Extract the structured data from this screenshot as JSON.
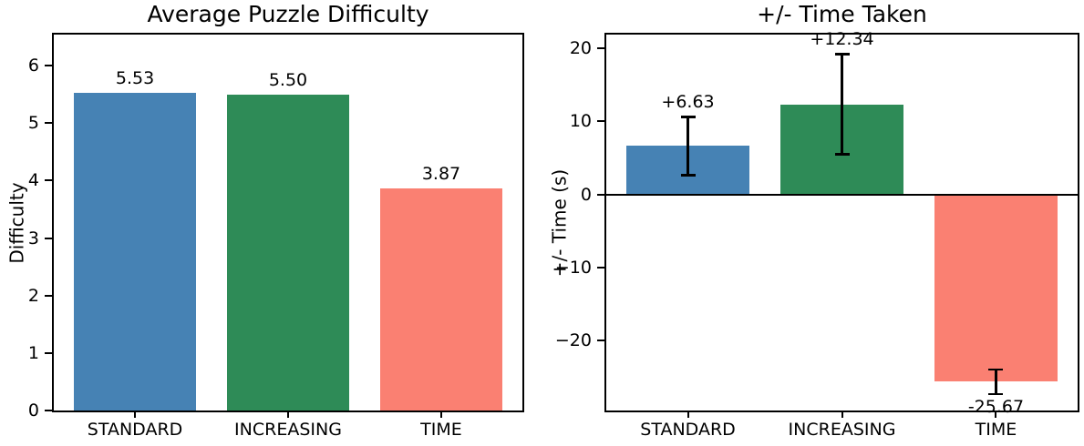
{
  "figure": {
    "background": "#ffffff"
  },
  "chart_data": [
    {
      "type": "bar",
      "title": "Average Puzzle Difficulty",
      "xlabel": "",
      "ylabel": "Difficulty",
      "categories": [
        "STANDARD",
        "INCREASING",
        "TIME"
      ],
      "values": [
        5.53,
        5.5,
        3.87
      ],
      "bar_labels": [
        "5.53",
        "5.50",
        "3.87"
      ],
      "colors": [
        "#4682B4",
        "#2E8B57",
        "#FA8072"
      ],
      "yticks": [
        0,
        1,
        2,
        3,
        4,
        5,
        6
      ],
      "ytick_labels": [
        "0",
        "1",
        "2",
        "3",
        "4",
        "5",
        "6"
      ],
      "ylim": [
        0,
        6.54
      ],
      "xlim": [
        -0.53,
        2.53
      ],
      "grid": false,
      "legend": null,
      "zero_line": false
    },
    {
      "type": "bar",
      "title": "+/- Time Taken",
      "xlabel": "",
      "ylabel": "+/- Time (s)",
      "categories": [
        "STANDARD",
        "INCREASING",
        "TIME"
      ],
      "values": [
        6.63,
        12.34,
        -25.67
      ],
      "errors": [
        4.0,
        6.9,
        1.7
      ],
      "bar_labels": [
        "+6.63",
        "+12.34",
        "-25.67"
      ],
      "colors": [
        "#4682B4",
        "#2E8B57",
        "#FA8072"
      ],
      "yticks": [
        -20,
        -10,
        0,
        10,
        20
      ],
      "ytick_labels": [
        "−20",
        "−10",
        "0",
        "10",
        "20"
      ],
      "ylim": [
        -29.6,
        21.9
      ],
      "xlim": [
        -0.53,
        2.53
      ],
      "grid": false,
      "legend": null,
      "zero_line": true
    }
  ]
}
